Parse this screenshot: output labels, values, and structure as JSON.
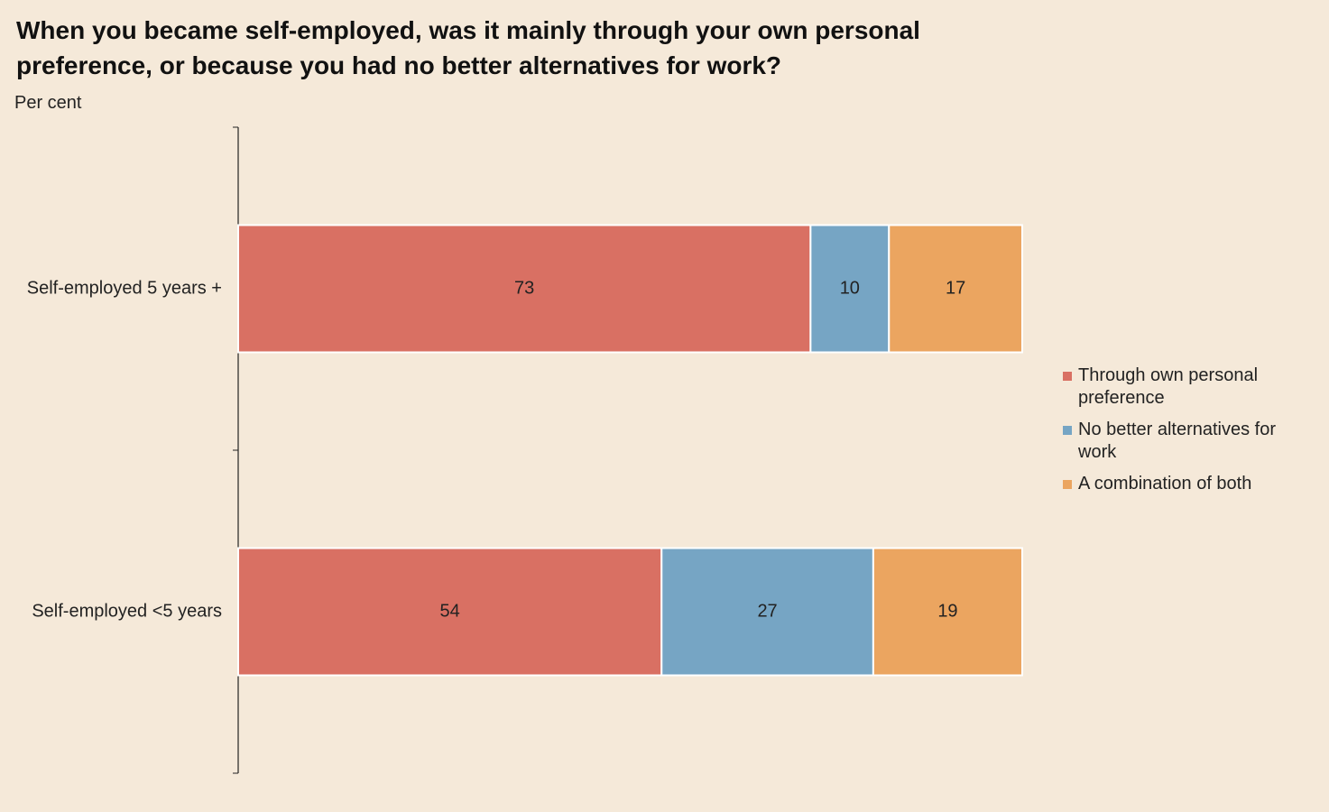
{
  "chart_data": {
    "type": "stacked-bar-horizontal",
    "title": "When you became self-employed, was it mainly through your own personal preference,  or because you had no better alternatives for work?",
    "subtitle": "Per cent",
    "categories": [
      "Self-employed 5 years +",
      "Self-employed <5 years"
    ],
    "series": [
      {
        "name": "Through own personal preference",
        "color": "#d97063",
        "values": [
          73,
          54
        ]
      },
      {
        "name": "No better alternatives for work",
        "color": "#76a5c4",
        "values": [
          10,
          27
        ]
      },
      {
        "name": "A combination of both",
        "color": "#eba560",
        "values": [
          17,
          19
        ]
      }
    ],
    "xlim": [
      0,
      100
    ]
  }
}
